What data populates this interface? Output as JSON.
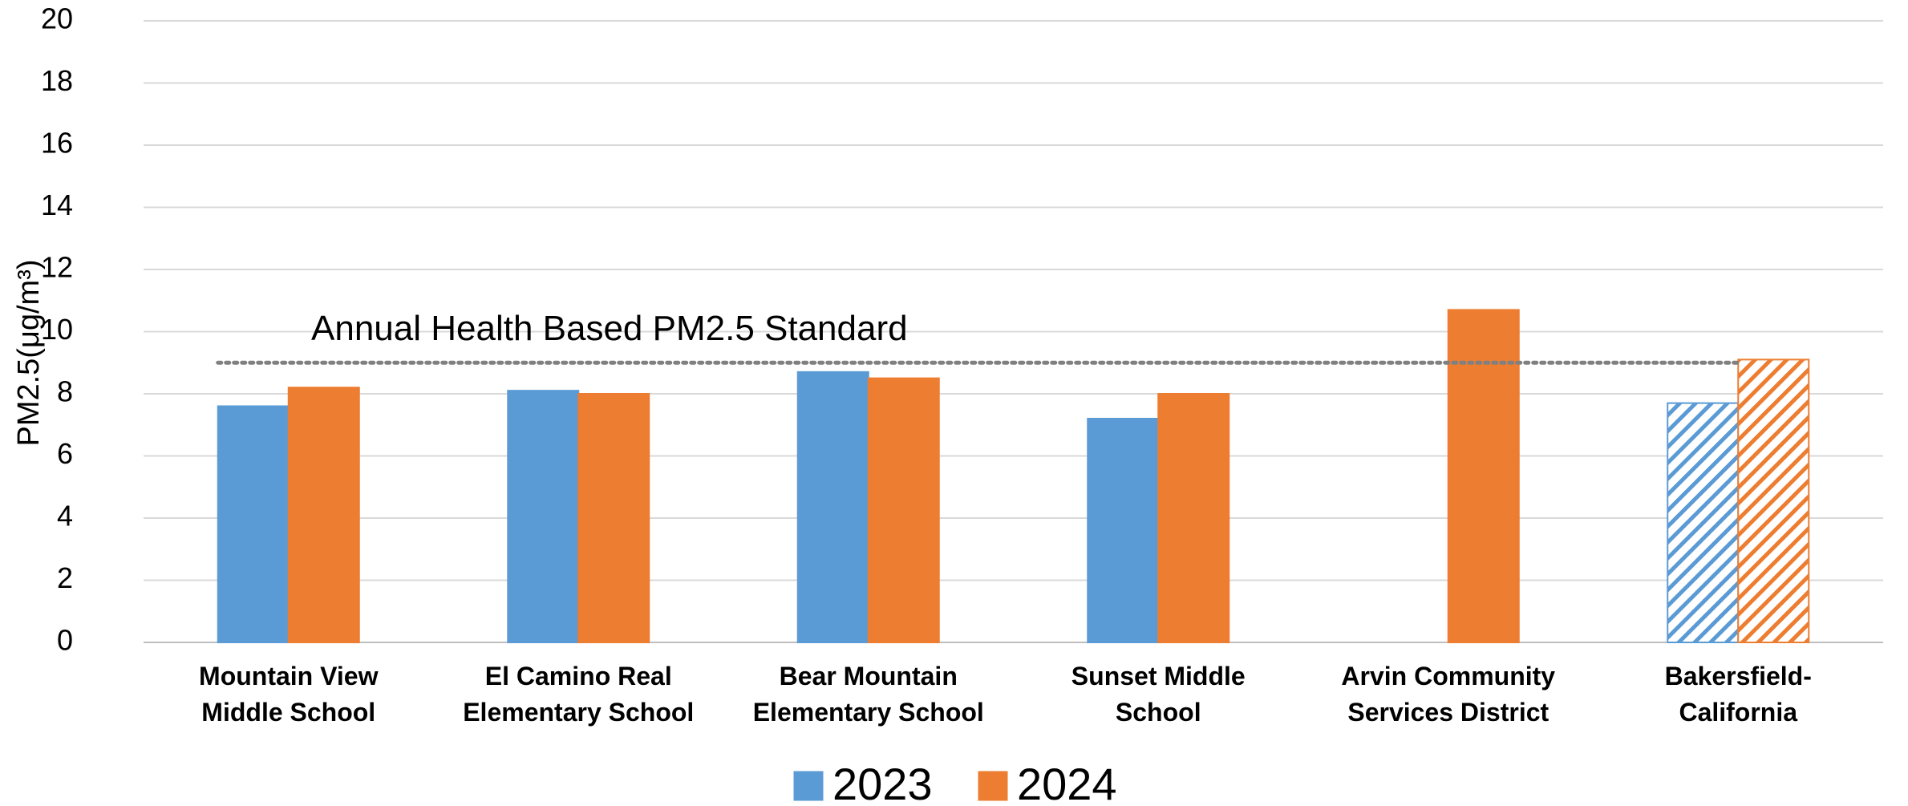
{
  "chart_data": {
    "type": "bar",
    "y_label": "PM2.5(μg/m³)",
    "categories": [
      "Mountain View Middle School",
      "El Camino Real Elementary School",
      "Bear Mountain Elementary School",
      "Sunset Middle School",
      "Arvin Community Services District",
      "Bakersfield-California"
    ],
    "series": [
      {
        "name": "2023",
        "color": "#5b9bd5",
        "values": [
          7.6,
          8.1,
          8.7,
          7.2,
          null,
          7.7
        ]
      },
      {
        "name": "2024",
        "color": "#ed7d31",
        "values": [
          8.2,
          8.0,
          8.5,
          8.0,
          10.7,
          9.1
        ]
      }
    ],
    "hatched_categories": [
      5
    ],
    "standard": {
      "value": 9.0,
      "label": "Annual Health Based PM2.5 Standard",
      "color": "#808080"
    },
    "ylim": [
      0,
      20
    ],
    "yticks": [
      0,
      2,
      4,
      6,
      8,
      10,
      12,
      14,
      16,
      18,
      20
    ],
    "grid": true,
    "legend": "bottom"
  }
}
